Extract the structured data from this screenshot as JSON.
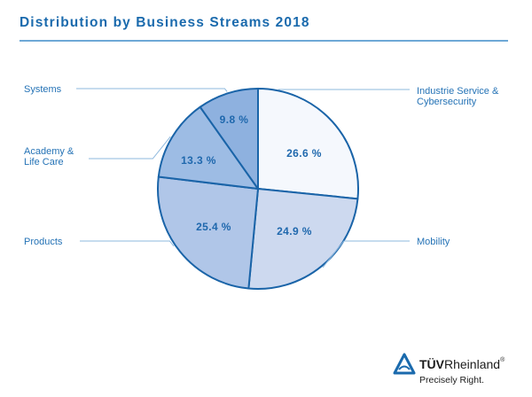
{
  "chart_data": {
    "type": "pie",
    "title": "Distribution by Business Streams 2018",
    "unit": "%",
    "start_angle_deg": 0,
    "direction": "clockwise",
    "slices": [
      {
        "name": "Industrie Service & Cybersecurity",
        "label_lines": [
          "Industrie Service &",
          "Cybersecurity"
        ],
        "value": 26.6,
        "value_label": "26.6 %",
        "color": "#f5f8fd",
        "side": "right"
      },
      {
        "name": "Mobility",
        "label_lines": [
          "Mobility"
        ],
        "value": 24.9,
        "value_label": "24.9 %",
        "color": "#cdd9ef",
        "side": "right"
      },
      {
        "name": "Products",
        "label_lines": [
          "Products"
        ],
        "value": 25.4,
        "value_label": "25.4 %",
        "color": "#b0c6e8",
        "side": "left"
      },
      {
        "name": "Academy & Life Care",
        "label_lines": [
          "Academy &",
          "Life Care"
        ],
        "value": 13.3,
        "value_label": "13.3 %",
        "color": "#9dbce4",
        "side": "left"
      },
      {
        "name": "Systems",
        "label_lines": [
          "Systems"
        ],
        "value": 9.8,
        "value_label": "9.8 %",
        "color": "#8eb1df",
        "side": "left"
      }
    ],
    "stroke_color": "#1a64a8",
    "legend": "callout-labels"
  },
  "branding": {
    "logo_name_bold": "TÜV",
    "logo_name_light": "Rheinland",
    "registered": "®",
    "tagline": "Precisely Right.",
    "color": "#1a6aad"
  }
}
